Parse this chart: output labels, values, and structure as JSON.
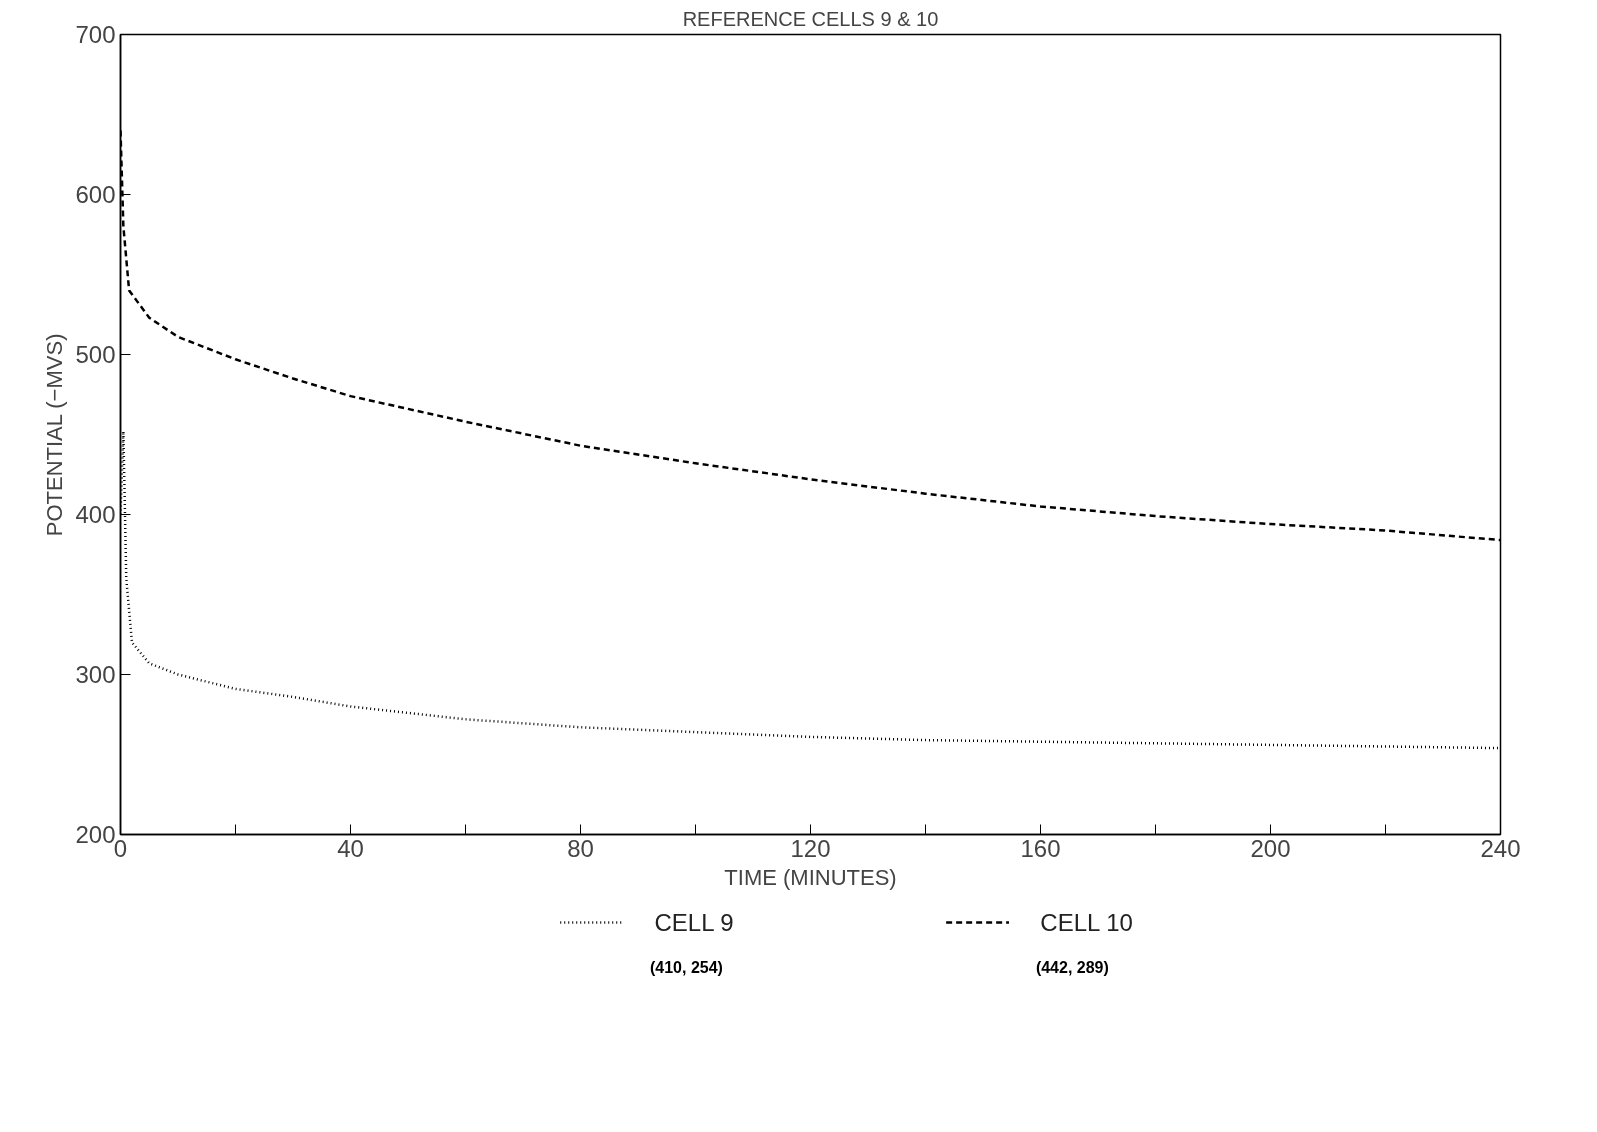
{
  "chart_data": {
    "type": "line",
    "title": "REFERENCE CELLS 9 & 10",
    "xlabel": "TIME (MINUTES)",
    "ylabel": "POTENTIAL (−MVS)",
    "xlim": [
      0,
      240
    ],
    "ylim": [
      200,
      700
    ],
    "xticks": [
      0,
      {
        "value": 20,
        "label": null
      },
      40,
      {
        "value": 60,
        "label": null
      },
      80,
      {
        "value": 100,
        "label": null
      },
      120,
      {
        "value": 140,
        "label": null
      },
      160,
      {
        "value": 180,
        "label": null
      },
      200,
      {
        "value": 220,
        "label": null
      },
      240
    ],
    "yticks": [
      200,
      300,
      400,
      500,
      600,
      700
    ],
    "grid": false,
    "legend": "bottom",
    "marker": "none",
    "series": [
      {
        "name": "CELL 9",
        "color": "#000000",
        "line_style": "dotted",
        "x": [
          0,
          0.5,
          1,
          2,
          5,
          10,
          20,
          30,
          40,
          60,
          80,
          100,
          120,
          140,
          160,
          180,
          200,
          220,
          240
        ],
        "values": [
          400,
          452,
          360,
          320,
          307,
          300,
          291,
          286,
          280,
          272,
          267,
          264,
          261,
          259,
          258,
          257,
          256,
          255,
          254
        ]
      },
      {
        "name": "CELL 10",
        "color": "#000000",
        "line_style": "dashed",
        "x": [
          0,
          0.5,
          1.5,
          5,
          10,
          20,
          30,
          40,
          60,
          80,
          100,
          120,
          140,
          160,
          180,
          200,
          220,
          240
        ],
        "values": [
          640,
          580,
          540,
          523,
          511,
          497,
          485,
          474,
          458,
          443,
          432,
          422,
          413,
          405,
          399,
          394,
          390,
          384
        ]
      }
    ],
    "annotations": [
      "(410, 254)",
      "(442, 289)"
    ]
  }
}
